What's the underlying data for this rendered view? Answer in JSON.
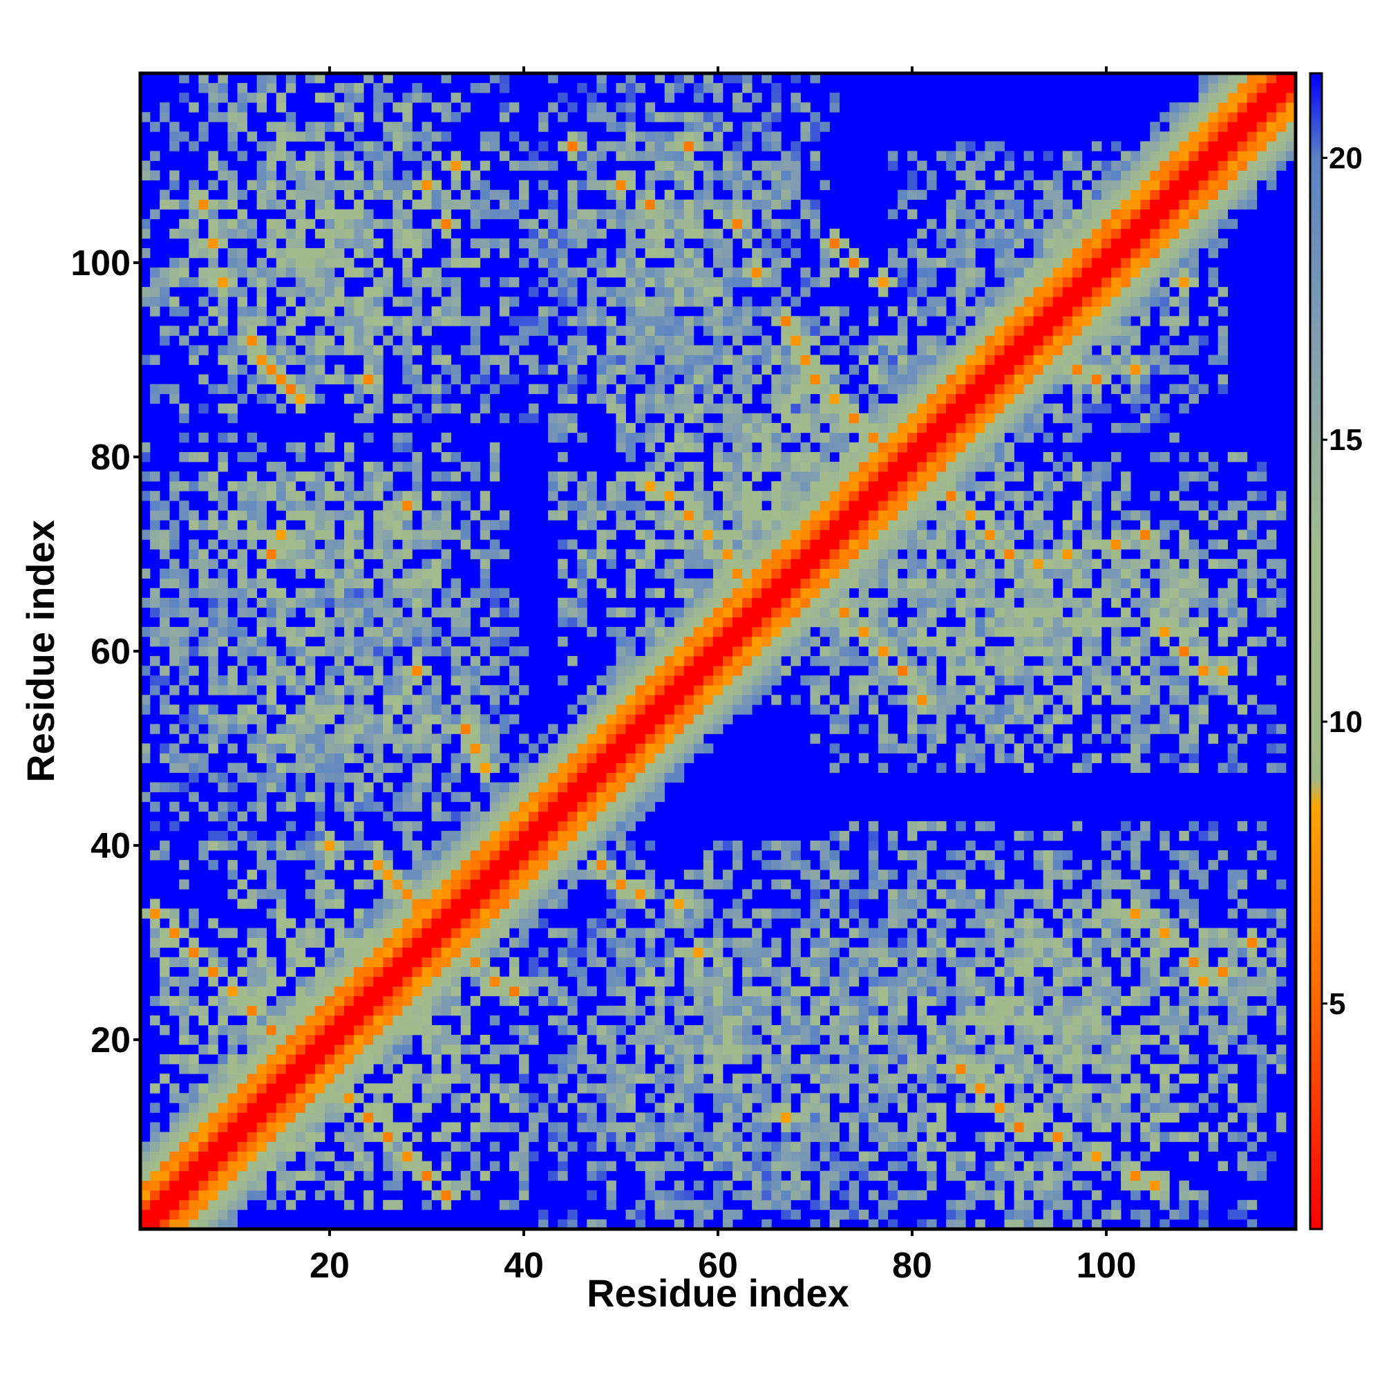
{
  "chart_data": {
    "type": "heatmap",
    "title": "",
    "xlabel": "Residue index",
    "ylabel": "Residue index",
    "xlim": [
      1,
      119
    ],
    "ylim": [
      1,
      119
    ],
    "x_ticks": [
      20,
      40,
      60,
      80,
      100
    ],
    "y_ticks": [
      20,
      40,
      60,
      80,
      100
    ],
    "colorbar": {
      "range": [
        1,
        21.5
      ],
      "ticks": [
        5,
        10,
        15,
        20
      ],
      "stops": [
        {
          "value": 1.0,
          "color": "#ff0000"
        },
        {
          "value": 5.0,
          "color": "#ff6600"
        },
        {
          "value": 8.5,
          "color": "#ffa500"
        },
        {
          "value": 9.0,
          "color": "#9fb88a"
        },
        {
          "value": 13.0,
          "color": "#a3bc8e"
        },
        {
          "value": 17.0,
          "color": "#7f9cb2"
        },
        {
          "value": 20.0,
          "color": "#5a82c4"
        },
        {
          "value": 21.5,
          "color": "#0000ff"
        }
      ]
    },
    "diagonal": {
      "value": 1.0,
      "near_value": 4.0,
      "band_value": 12.0
    },
    "background_value": 21.5,
    "contact_regions": [
      {
        "x": [
          1,
          38
        ],
        "y": [
          84,
          119
        ],
        "core": 13,
        "contacts": [
          [
            7,
            106
          ],
          [
            8,
            102
          ],
          [
            9,
            98
          ],
          [
            12,
            92
          ],
          [
            13,
            90
          ],
          [
            14,
            89
          ],
          [
            15,
            88
          ],
          [
            16,
            87
          ],
          [
            17,
            86
          ],
          [
            24,
            88
          ],
          [
            30,
            108
          ],
          [
            32,
            104
          ],
          [
            33,
            110
          ]
        ]
      },
      {
        "x": [
          38,
          72
        ],
        "y": [
          84,
          119
        ],
        "core": 14,
        "contacts": [
          [
            45,
            112
          ],
          [
            50,
            108
          ],
          [
            53,
            106
          ],
          [
            57,
            112
          ],
          [
            62,
            104
          ],
          [
            64,
            99
          ]
        ]
      },
      {
        "x": [
          1,
          38
        ],
        "y": [
          60,
          82
        ],
        "core": 13,
        "contacts": [
          [
            14,
            70
          ],
          [
            15,
            72
          ],
          [
            28,
            75
          ]
        ]
      },
      {
        "x": [
          1,
          40
        ],
        "y": [
          40,
          66
        ],
        "core": 14,
        "contacts": [
          [
            20,
            40
          ],
          [
            29,
            58
          ],
          [
            34,
            52
          ],
          [
            35,
            50
          ],
          [
            36,
            48
          ]
        ]
      },
      {
        "x": [
          2,
          40
        ],
        "y": [
          3,
          40
        ],
        "core": 12,
        "contacts": [
          [
            2,
            33
          ],
          [
            4,
            31
          ],
          [
            6,
            29
          ],
          [
            8,
            27
          ],
          [
            10,
            25
          ],
          [
            12,
            23
          ],
          [
            14,
            21
          ],
          [
            16,
            19
          ],
          [
            20,
            16
          ],
          [
            22,
            14
          ],
          [
            24,
            12
          ],
          [
            26,
            10
          ],
          [
            28,
            8
          ],
          [
            30,
            6
          ],
          [
            32,
            4
          ],
          [
            25,
            38
          ],
          [
            26,
            37
          ],
          [
            27,
            36
          ],
          [
            28,
            35
          ],
          [
            29,
            34
          ],
          [
            33,
            30
          ],
          [
            35,
            28
          ],
          [
            37,
            26
          ],
          [
            39,
            25
          ]
        ]
      },
      {
        "x": [
          40,
          82
        ],
        "y": [
          1,
          40
        ],
        "core": 14,
        "contacts": [
          [
            45,
            42
          ],
          [
            48,
            38
          ],
          [
            50,
            36
          ],
          [
            52,
            35
          ],
          [
            56,
            34
          ],
          [
            58,
            29
          ],
          [
            67,
            12
          ]
        ]
      },
      {
        "x": [
          43,
          90
        ],
        "y": [
          55,
          95
        ],
        "core": 13,
        "contacts": [
          [
            53,
            77
          ],
          [
            55,
            76
          ],
          [
            57,
            74
          ],
          [
            59,
            72
          ],
          [
            61,
            70
          ],
          [
            62,
            68
          ],
          [
            63,
            66
          ],
          [
            67,
            94
          ],
          [
            68,
            92
          ],
          [
            69,
            90
          ],
          [
            70,
            88
          ],
          [
            72,
            86
          ],
          [
            74,
            84
          ],
          [
            76,
            82
          ],
          [
            78,
            80
          ],
          [
            73,
            64
          ],
          [
            75,
            62
          ],
          [
            77,
            60
          ],
          [
            79,
            58
          ],
          [
            81,
            55
          ]
        ]
      },
      {
        "x": [
          70,
          118
        ],
        "y": [
          48,
          80
        ],
        "core": 13,
        "contacts": [
          [
            82,
            78
          ],
          [
            84,
            76
          ],
          [
            86,
            74
          ],
          [
            88,
            72
          ],
          [
            90,
            70
          ],
          [
            93,
            69
          ],
          [
            96,
            70
          ],
          [
            101,
            71
          ],
          [
            104,
            72
          ],
          [
            106,
            62
          ],
          [
            108,
            60
          ],
          [
            110,
            58
          ],
          [
            112,
            58
          ],
          [
            108,
            98
          ]
        ]
      },
      {
        "x": [
          70,
          118
        ],
        "y": [
          1,
          42
        ],
        "core": 13,
        "contacts": [
          [
            85,
            17
          ],
          [
            87,
            15
          ],
          [
            89,
            13
          ],
          [
            91,
            11
          ],
          [
            95,
            10
          ],
          [
            99,
            8
          ],
          [
            103,
            6
          ],
          [
            105,
            5
          ],
          [
            106,
            31
          ],
          [
            109,
            28
          ],
          [
            112,
            27
          ],
          [
            115,
            30
          ],
          [
            103,
            33
          ],
          [
            110,
            26
          ]
        ]
      },
      {
        "x": [
          78,
          112
        ],
        "y": [
          82,
          112
        ],
        "core": 14,
        "contacts": [
          [
            90,
            94
          ],
          [
            92,
            92
          ],
          [
            94,
            90
          ],
          [
            97,
            89
          ],
          [
            99,
            88
          ],
          [
            103,
            89
          ],
          [
            72,
            102
          ],
          [
            74,
            100
          ],
          [
            77,
            98
          ]
        ]
      }
    ]
  }
}
